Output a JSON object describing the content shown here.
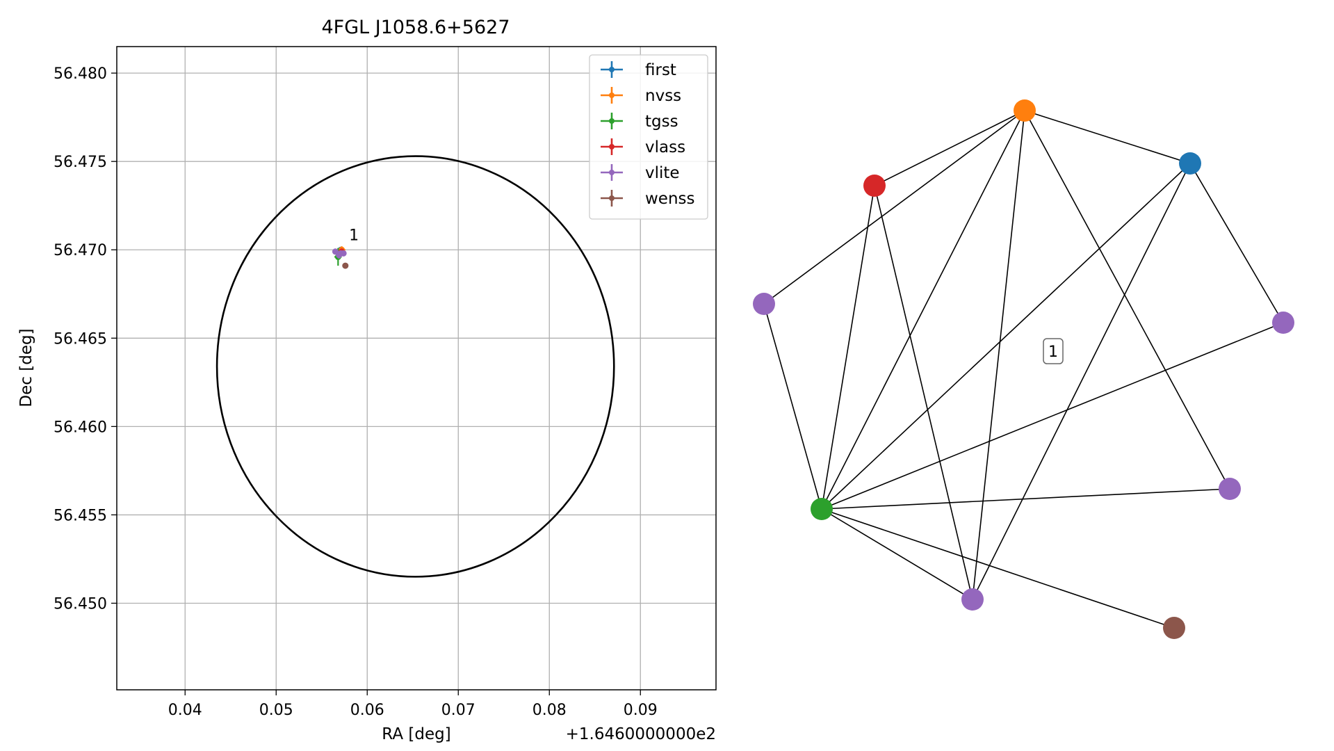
{
  "chart_data": [
    {
      "type": "scatter",
      "title": "4FGL J1058.6+5627",
      "xlabel": "RA [deg]",
      "ylabel": "Dec [deg]",
      "x_offset_label": "+1.6460000000e2",
      "xlim": [
        0.0325,
        0.0983
      ],
      "ylim": [
        56.4451,
        56.4815
      ],
      "x_ticks": [
        0.04,
        0.05,
        0.06,
        0.07,
        0.08,
        0.09
      ],
      "x_tick_labels": [
        "0.04",
        "0.05",
        "0.06",
        "0.07",
        "0.08",
        "0.09"
      ],
      "y_ticks": [
        56.45,
        56.455,
        56.46,
        56.465,
        56.47,
        56.475,
        56.48
      ],
      "y_tick_labels": [
        "56.450",
        "56.455",
        "56.460",
        "56.465",
        "56.470",
        "56.475",
        "56.480"
      ],
      "grid": true,
      "legend_position": "top-right",
      "series": [
        {
          "name": "first",
          "color": "#1f77b4",
          "points": [
            {
              "x": 0.0571,
              "y": 56.47,
              "xerr": 0.0002,
              "yerr": 0.0001
            }
          ]
        },
        {
          "name": "nvss",
          "color": "#ff7f0e",
          "points": [
            {
              "x": 0.0572,
              "y": 56.47,
              "xerr": 0.0004,
              "yerr": 0.0002
            }
          ]
        },
        {
          "name": "tgss",
          "color": "#2ca02c",
          "points": [
            {
              "x": 0.0568,
              "y": 56.4696,
              "xerr": 0.0004,
              "yerr": 0.0005
            }
          ]
        },
        {
          "name": "vlass",
          "color": "#d62728",
          "points": [
            {
              "x": 0.0572,
              "y": 56.4699,
              "xerr": 0.0001,
              "yerr": 0.0001
            }
          ]
        },
        {
          "name": "vlite",
          "color": "#9467bd",
          "points": [
            {
              "x": 0.0565,
              "y": 56.4699,
              "xerr": 0.0002,
              "yerr": 0.0001
            },
            {
              "x": 0.0569,
              "y": 56.4697,
              "xerr": 0.0002,
              "yerr": 0.0002
            },
            {
              "x": 0.0574,
              "y": 56.4698,
              "xerr": 0.0002,
              "yerr": 0.0001
            },
            {
              "x": 0.0571,
              "y": 56.4698,
              "xerr": 0.0002,
              "yerr": 0.0001
            }
          ]
        },
        {
          "name": "wenss",
          "color": "#8c564b",
          "points": [
            {
              "x": 0.0576,
              "y": 56.4691,
              "xerr": 0.0001,
              "yerr": 0.0001
            }
          ]
        }
      ],
      "ellipse": {
        "cx": 0.0653,
        "cy": 56.4634,
        "rx": 0.0218,
        "ry": 0.0119,
        "color": "#000000"
      },
      "annotations": [
        {
          "text": "1",
          "x": 0.0577,
          "y": 56.4703
        }
      ]
    },
    {
      "type": "network",
      "nodes": [
        {
          "id": "first-0",
          "color": "#1f77b4"
        },
        {
          "id": "nvss-0",
          "color": "#ff7f0e"
        },
        {
          "id": "vlass-0",
          "color": "#d62728"
        },
        {
          "id": "vlite-0",
          "color": "#9467bd"
        },
        {
          "id": "vlite-1",
          "color": "#9467bd"
        },
        {
          "id": "vlite-2",
          "color": "#9467bd"
        },
        {
          "id": "tgss-0",
          "color": "#2ca02c"
        },
        {
          "id": "vlite-3",
          "color": "#9467bd"
        },
        {
          "id": "wenss-0",
          "color": "#8c564b"
        }
      ],
      "edges": [
        [
          "nvss-0",
          "vlass-0"
        ],
        [
          "nvss-0",
          "first-0"
        ],
        [
          "nvss-0",
          "vlite-1"
        ],
        [
          "nvss-0",
          "tgss-0"
        ],
        [
          "nvss-0",
          "vlite-3"
        ],
        [
          "nvss-0",
          "vlite-2"
        ],
        [
          "first-0",
          "vlite-0"
        ],
        [
          "first-0",
          "tgss-0"
        ],
        [
          "first-0",
          "vlite-3"
        ],
        [
          "vlass-0",
          "tgss-0"
        ],
        [
          "vlass-0",
          "vlite-3"
        ],
        [
          "vlite-1",
          "tgss-0"
        ],
        [
          "vlite-0",
          "tgss-0"
        ],
        [
          "vlite-2",
          "tgss-0"
        ],
        [
          "tgss-0",
          "vlite-3"
        ],
        [
          "tgss-0",
          "wenss-0"
        ]
      ],
      "annotations": [
        {
          "text": "1"
        }
      ]
    }
  ]
}
